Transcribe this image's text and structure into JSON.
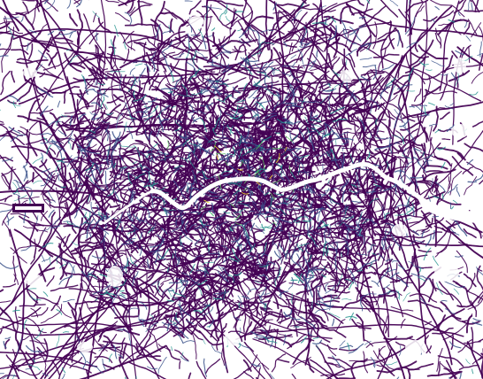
{
  "map": {
    "subject": "road network",
    "background_color": "#ffffff",
    "river_color": "#ffffff",
    "palette": {
      "minor_road": "#440154",
      "secondary_road": "#3b528b",
      "major_road": "#21918c",
      "highlight_road": "#5ec962",
      "peak_road": "#fde725"
    }
  }
}
